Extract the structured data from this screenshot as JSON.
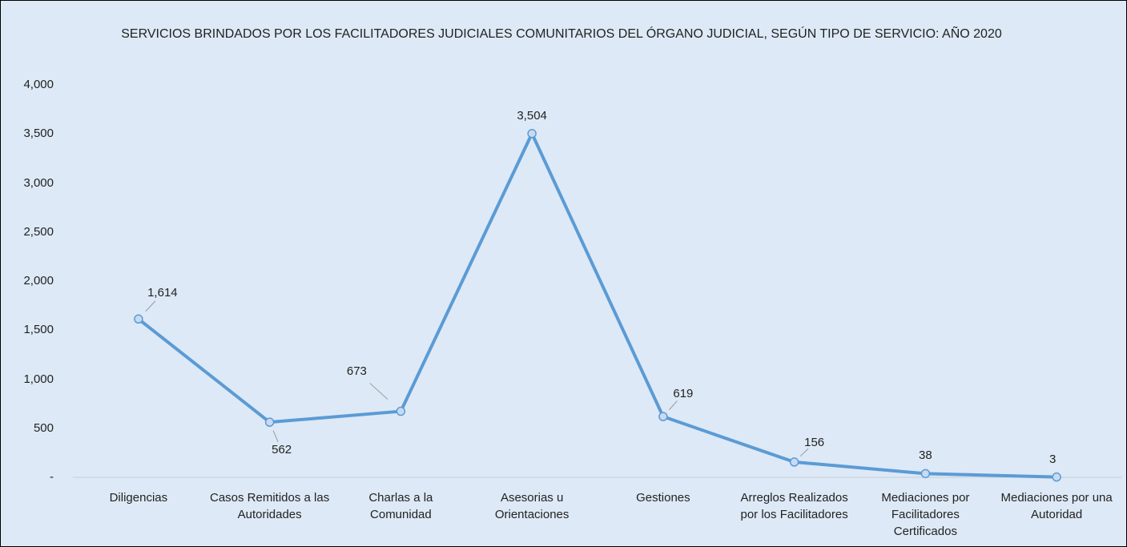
{
  "chart_data": {
    "type": "line",
    "title": "SERVICIOS BRINDADOS POR LOS FACILITADORES JUDICIALES COMUNITARIOS DEL ÓRGANO JUDICIAL, SEGÚN TIPO DE SERVICIO: AÑO 2020",
    "categories": [
      "Diligencias",
      "Casos Remitidos a las Autoridades",
      "Charlas a la Comunidad",
      "Asesorias u Orientaciones",
      "Gestiones",
      "Arreglos Realizados por los Facilitadores",
      "Mediaciones por Facilitadores Certificados",
      "Mediaciones por una Autoridad"
    ],
    "values": [
      1614,
      562,
      673,
      3504,
      619,
      156,
      38,
      3
    ],
    "value_labels": [
      "1,614",
      "562",
      "673",
      "3,504",
      "619",
      "156",
      "38",
      "3"
    ],
    "color": "#5b9bd5",
    "ylim": [
      0,
      4000
    ],
    "yticks": [
      {
        "value": 0,
        "label": "-"
      },
      500,
      {
        "value": 1000,
        "label": "1,000"
      },
      {
        "value": 1500,
        "label": "1,500"
      },
      {
        "value": 2000,
        "label": "2,000"
      },
      {
        "value": 2500,
        "label": "2,500"
      },
      {
        "value": 3000,
        "label": "3,000"
      },
      {
        "value": 3500,
        "label": "3,500"
      },
      {
        "value": 4000,
        "label": "4,000"
      }
    ],
    "grid": false
  }
}
